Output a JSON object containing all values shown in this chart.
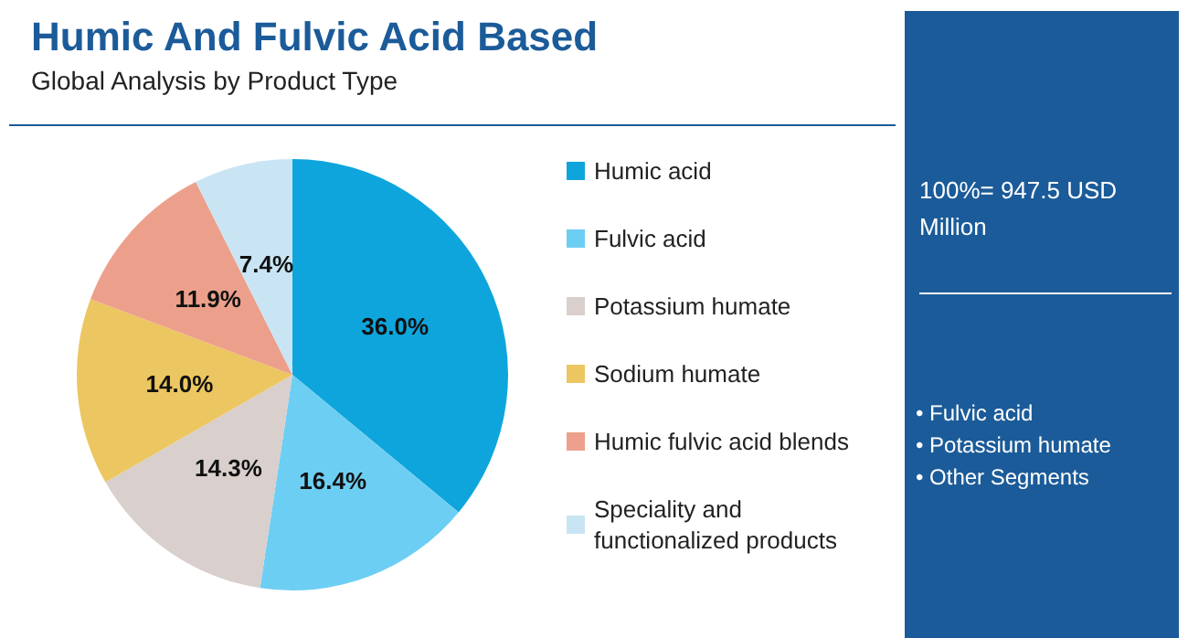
{
  "chart_data": {
    "type": "pie",
    "title": "Humic And Fulvic Acid Based",
    "subtitle": "Global Analysis by Product Type",
    "categories": [
      "Humic acid",
      "Fulvic acid",
      "Potassium humate",
      "Sodium humate",
      "Humic fulvic acid blends",
      "Speciality and functionalized products"
    ],
    "values": [
      36.0,
      16.4,
      14.3,
      14.0,
      11.9,
      7.4
    ],
    "value_labels": [
      "36.0%",
      "16.4%",
      "14.3%",
      "14.0%",
      "11.9%",
      "7.4%"
    ],
    "colors": [
      "#0ea5dc",
      "#6dcef3",
      "#d9cfcc",
      "#ecc661",
      "#eca08b",
      "#c9e5f4"
    ],
    "legend": "right",
    "annotations": [
      "100%= 947.5 USD Million",
      "• Fulvic acid",
      "• Potassium humate",
      "• Other Segments"
    ]
  }
}
